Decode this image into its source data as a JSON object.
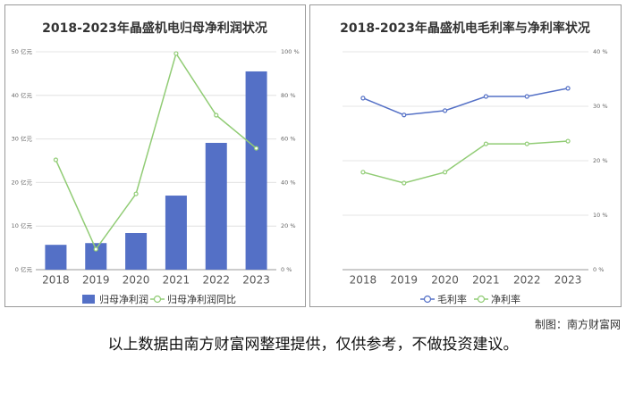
{
  "chart_data": [
    {
      "type": "combo",
      "title": "2018-2023年晶盛机电归母净利润状况",
      "categories": [
        "2018",
        "2019",
        "2020",
        "2021",
        "2022",
        "2023"
      ],
      "series": [
        {
          "name": "归母净利润",
          "type": "bar",
          "color": "#5470c6",
          "axis": "y",
          "values": [
            5.7,
            6.1,
            8.4,
            17.0,
            29.1,
            45.5
          ]
        },
        {
          "name": "归母净利润同比",
          "type": "line",
          "color": "#91cc75",
          "axis": "y2",
          "values": [
            50.4,
            9.4,
            34.8,
            99.2,
            70.9,
            55.7
          ]
        }
      ],
      "ylim": [
        0,
        50
      ],
      "yticks": [
        {
          "value": 0,
          "label": "0 亿元"
        },
        {
          "value": 10,
          "label": "10 亿元"
        },
        {
          "value": 20,
          "label": "20 亿元"
        },
        {
          "value": 30,
          "label": "30 亿元"
        },
        {
          "value": 40,
          "label": "40 亿元"
        },
        {
          "value": 50,
          "label": "50 亿元"
        }
      ],
      "y2lim": [
        0,
        100
      ],
      "y2ticks": [
        {
          "value": 0,
          "label": "0 %"
        },
        {
          "value": 20,
          "label": "20 %"
        },
        {
          "value": 40,
          "label": "40 %"
        },
        {
          "value": 60,
          "label": "60 %"
        },
        {
          "value": 80,
          "label": "80 %"
        },
        {
          "value": 100,
          "label": "100 %"
        }
      ],
      "grid": true
    },
    {
      "type": "line",
      "title": "2018-2023年晶盛机电毛利率与净利率状况",
      "categories": [
        "2018",
        "2019",
        "2020",
        "2021",
        "2022",
        "2023"
      ],
      "series": [
        {
          "name": "毛利率",
          "type": "line",
          "color": "#5470c6",
          "axis": "y2",
          "values": [
            31.5,
            28.4,
            29.2,
            31.8,
            31.8,
            33.3
          ]
        },
        {
          "name": "净利率",
          "type": "line",
          "color": "#91cc75",
          "axis": "y2",
          "values": [
            17.9,
            15.9,
            17.9,
            23.1,
            23.1,
            23.6
          ]
        }
      ],
      "y2lim": [
        0,
        40
      ],
      "y2ticks": [
        {
          "value": 0,
          "label": "0 %"
        },
        {
          "value": 10,
          "label": "10 %"
        },
        {
          "value": 20,
          "label": "20 %"
        },
        {
          "value": 30,
          "label": "30 %"
        },
        {
          "value": 40,
          "label": "40 %"
        }
      ],
      "grid": true
    }
  ],
  "credit": "制图：南方财富网",
  "note": "以上数据由南方财富网整理提供，仅供参考，不做投资建议。"
}
